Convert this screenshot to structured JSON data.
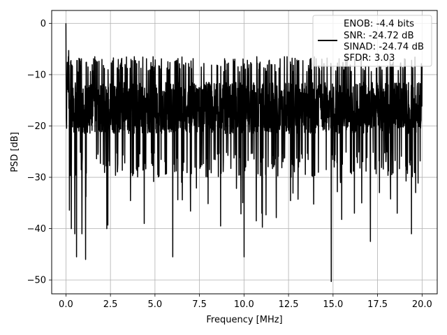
{
  "chart_data": {
    "type": "line",
    "title": "",
    "xlabel": "Frequency [MHz]",
    "ylabel": "PSD [dB]",
    "xlim": [
      -0.8,
      20.85
    ],
    "ylim": [
      -52.7,
      2.5
    ],
    "xticks": [
      0.0,
      2.5,
      5.0,
      7.5,
      10.0,
      12.5,
      15.0,
      17.5,
      20.0
    ],
    "xtick_labels": [
      "0.0",
      "2.5",
      "5.0",
      "7.5",
      "10.0",
      "12.5",
      "15.0",
      "17.5",
      "20.0"
    ],
    "yticks": [
      0,
      -10,
      -20,
      -30,
      -40,
      -50
    ],
    "ytick_labels": [
      "0",
      "−10",
      "−20",
      "−30",
      "−40",
      "−50"
    ],
    "grid": true,
    "legend_position": "top-right",
    "legend_entries": [
      "ENOB: -4.4 bits",
      "SNR: -24.72 dB",
      "SINAD: -24.74 dB",
      "SFDR: 3.03"
    ],
    "series": [
      {
        "color": "#000000",
        "x_range": [
          0.0,
          20.0
        ],
        "num_points": 2048,
        "level_db": -16.5,
        "upper_envelope_db": -6.5,
        "lower_typical_db": -25,
        "peak": {
          "x": 0.0,
          "y": 0.0
        },
        "notches": [
          {
            "x": 0.3,
            "y": -40
          },
          {
            "x": 0.5,
            "y": -41
          },
          {
            "x": 0.6,
            "y": -45.5
          },
          {
            "x": 0.9,
            "y": -41
          },
          {
            "x": 1.1,
            "y": -46
          },
          {
            "x": 2.3,
            "y": -40
          },
          {
            "x": 4.4,
            "y": -39
          },
          {
            "x": 6.0,
            "y": -45.5
          },
          {
            "x": 10.0,
            "y": -45.5
          },
          {
            "x": 14.9,
            "y": -50.3
          },
          {
            "x": 17.1,
            "y": -42.5
          },
          {
            "x": 19.4,
            "y": -41
          },
          {
            "x": 18.6,
            "y": -37
          },
          {
            "x": 16.2,
            "y": -37
          },
          {
            "x": 11.0,
            "y": -37
          }
        ]
      }
    ]
  }
}
